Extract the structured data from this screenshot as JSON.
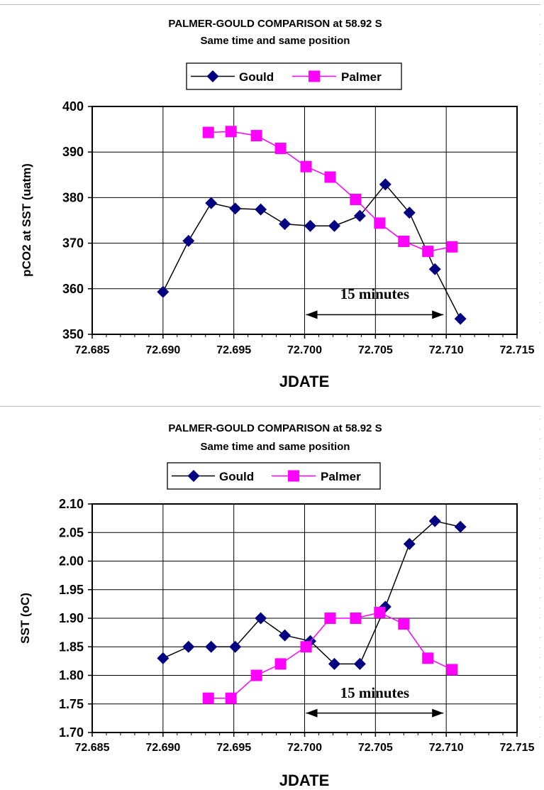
{
  "chart_data": [
    {
      "type": "line",
      "title": "PALMER-GOULD COMPARISON at 58.92 S",
      "subtitle": "Same time and same position",
      "xlabel": "JDATE",
      "ylabel": "pCO2 at SST (uatm)",
      "xlim": [
        72.685,
        72.715
      ],
      "ylim": [
        350,
        400
      ],
      "x_ticks": [
        "72.685",
        "72.690",
        "72.695",
        "72.700",
        "72.705",
        "72.710",
        "72.715"
      ],
      "y_ticks": [
        "350",
        "360",
        "370",
        "380",
        "390",
        "400"
      ],
      "grid": true,
      "legend_position": "top",
      "series": [
        {
          "name": "Gould",
          "color": "#000080",
          "marker": "diamond",
          "x": [
            72.69,
            72.6918,
            72.6934,
            72.6951,
            72.6969,
            72.6986,
            72.7004,
            72.7021,
            72.7039,
            72.7057,
            72.7074,
            72.7092,
            72.711
          ],
          "y": [
            359.3,
            370.5,
            378.8,
            377.6,
            377.4,
            374.2,
            373.8,
            373.8,
            376.0,
            382.9,
            376.7,
            364.3,
            353.4
          ]
        },
        {
          "name": "Palmer",
          "color": "#ff00ff",
          "marker": "square",
          "x": [
            72.6932,
            72.6948,
            72.6966,
            72.6983,
            72.7001,
            72.7018,
            72.7036,
            72.7053,
            72.707,
            72.7087,
            72.7104
          ],
          "y": [
            394.3,
            394.5,
            393.6,
            390.8,
            386.8,
            384.5,
            379.6,
            374.4,
            370.4,
            368.2,
            369.2
          ]
        }
      ],
      "annotation": {
        "text": "15 minutes",
        "x_start": 72.7001,
        "x_end": 72.7098,
        "y": 354.3,
        "text_y": 357.8
      }
    },
    {
      "type": "line",
      "title": "PALMER-GOULD COMPARISON at 58.92 S",
      "subtitle": "Same time and same position",
      "xlabel": "JDATE",
      "ylabel": "SST (oC)",
      "xlim": [
        72.685,
        72.715
      ],
      "ylim": [
        1.7,
        2.1
      ],
      "x_ticks": [
        "72.685",
        "72.690",
        "72.695",
        "72.700",
        "72.705",
        "72.710",
        "72.715"
      ],
      "y_ticks": [
        "1.70",
        "1.75",
        "1.80",
        "1.85",
        "1.90",
        "1.95",
        "2.00",
        "2.05",
        "2.10"
      ],
      "grid": true,
      "legend_position": "top",
      "series": [
        {
          "name": "Gould",
          "color": "#000080",
          "marker": "diamond",
          "x": [
            72.69,
            72.6918,
            72.6934,
            72.6951,
            72.6969,
            72.6986,
            72.7004,
            72.7021,
            72.7039,
            72.7057,
            72.7074,
            72.7092,
            72.711
          ],
          "y": [
            1.83,
            1.85,
            1.85,
            1.85,
            1.9,
            1.87,
            1.86,
            1.82,
            1.82,
            1.92,
            2.03,
            2.07,
            2.06
          ]
        },
        {
          "name": "Palmer",
          "color": "#ff00ff",
          "marker": "square",
          "x": [
            72.6932,
            72.6948,
            72.6966,
            72.6983,
            72.7001,
            72.7018,
            72.7036,
            72.7053,
            72.707,
            72.7087,
            72.7104
          ],
          "y": [
            1.76,
            1.76,
            1.8,
            1.82,
            1.85,
            1.9,
            1.9,
            1.91,
            1.89,
            1.83,
            1.81
          ]
        }
      ],
      "annotation": {
        "text": "15 minutes",
        "x_start": 72.7001,
        "x_end": 72.7098,
        "y": 1.734,
        "text_y": 1.761
      }
    }
  ]
}
